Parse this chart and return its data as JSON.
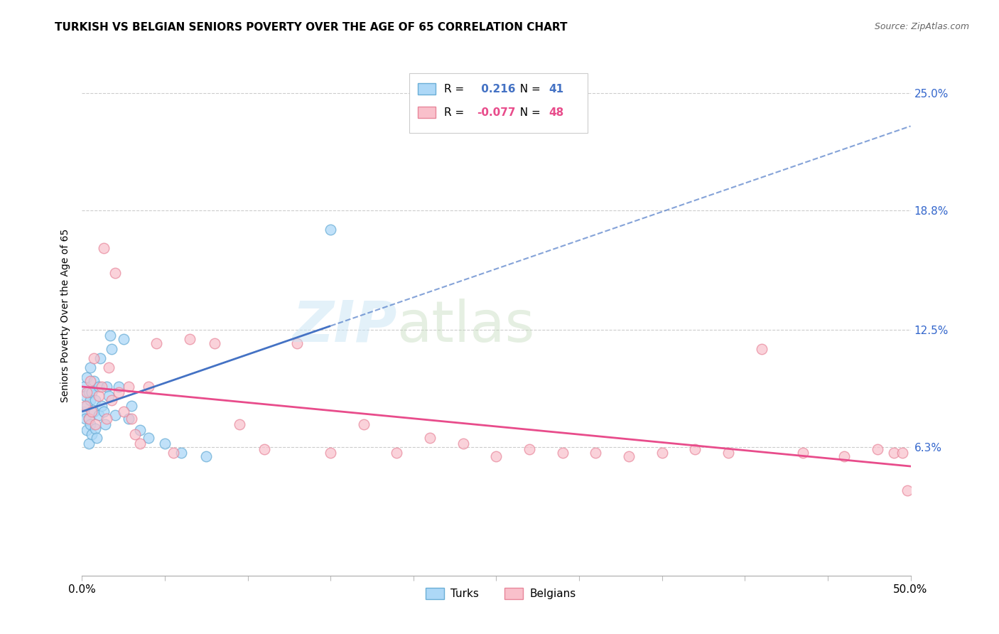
{
  "title": "TURKISH VS BELGIAN SENIORS POVERTY OVER THE AGE OF 65 CORRELATION CHART",
  "source": "Source: ZipAtlas.com",
  "ylabel": "Seniors Poverty Over the Age of 65",
  "xlim": [
    0.0,
    0.5
  ],
  "ylim": [
    -0.005,
    0.27
  ],
  "xtick_vals": [
    0.0,
    0.05,
    0.1,
    0.15,
    0.2,
    0.25,
    0.3,
    0.35,
    0.4,
    0.45,
    0.5
  ],
  "xtick_show_labels": [
    0.0,
    0.5
  ],
  "ytick_labels": [
    "6.3%",
    "12.5%",
    "18.8%",
    "25.0%"
  ],
  "ytick_vals": [
    0.063,
    0.125,
    0.188,
    0.25
  ],
  "turks_R": 0.216,
  "turks_N": 41,
  "belgians_R": -0.077,
  "belgians_N": 48,
  "color_turks_fill": "#ADD8F7",
  "color_turks_edge": "#6AAED6",
  "color_belgians_fill": "#F9C0CB",
  "color_belgians_edge": "#E8869A",
  "color_turks_line": "#4472C4",
  "color_belgians_line": "#E84C8B",
  "color_right_ytick": "#3366CC",
  "turks_x": [
    0.001,
    0.001,
    0.002,
    0.002,
    0.003,
    0.003,
    0.003,
    0.004,
    0.004,
    0.004,
    0.005,
    0.005,
    0.005,
    0.006,
    0.006,
    0.007,
    0.007,
    0.008,
    0.008,
    0.009,
    0.01,
    0.01,
    0.011,
    0.012,
    0.013,
    0.014,
    0.015,
    0.016,
    0.017,
    0.018,
    0.02,
    0.022,
    0.025,
    0.028,
    0.03,
    0.035,
    0.04,
    0.05,
    0.06,
    0.075,
    0.15
  ],
  "turks_y": [
    0.095,
    0.082,
    0.09,
    0.078,
    0.1,
    0.085,
    0.072,
    0.092,
    0.078,
    0.065,
    0.105,
    0.088,
    0.075,
    0.092,
    0.07,
    0.098,
    0.082,
    0.088,
    0.073,
    0.068,
    0.095,
    0.08,
    0.11,
    0.085,
    0.082,
    0.075,
    0.095,
    0.09,
    0.122,
    0.115,
    0.08,
    0.095,
    0.12,
    0.078,
    0.085,
    0.072,
    0.068,
    0.065,
    0.06,
    0.058,
    0.178
  ],
  "belgians_x": [
    0.002,
    0.003,
    0.004,
    0.005,
    0.006,
    0.007,
    0.008,
    0.01,
    0.012,
    0.013,
    0.015,
    0.016,
    0.018,
    0.02,
    0.022,
    0.025,
    0.028,
    0.03,
    0.032,
    0.035,
    0.04,
    0.045,
    0.055,
    0.065,
    0.08,
    0.095,
    0.11,
    0.13,
    0.15,
    0.17,
    0.19,
    0.21,
    0.23,
    0.25,
    0.27,
    0.29,
    0.31,
    0.33,
    0.35,
    0.37,
    0.39,
    0.41,
    0.435,
    0.46,
    0.48,
    0.49,
    0.495,
    0.498
  ],
  "belgians_y": [
    0.085,
    0.092,
    0.078,
    0.098,
    0.082,
    0.11,
    0.075,
    0.09,
    0.095,
    0.168,
    0.078,
    0.105,
    0.088,
    0.155,
    0.092,
    0.082,
    0.095,
    0.078,
    0.07,
    0.065,
    0.095,
    0.118,
    0.06,
    0.12,
    0.118,
    0.075,
    0.062,
    0.118,
    0.06,
    0.075,
    0.06,
    0.068,
    0.065,
    0.058,
    0.062,
    0.06,
    0.06,
    0.058,
    0.06,
    0.062,
    0.06,
    0.115,
    0.06,
    0.058,
    0.062,
    0.06,
    0.06,
    0.04
  ]
}
